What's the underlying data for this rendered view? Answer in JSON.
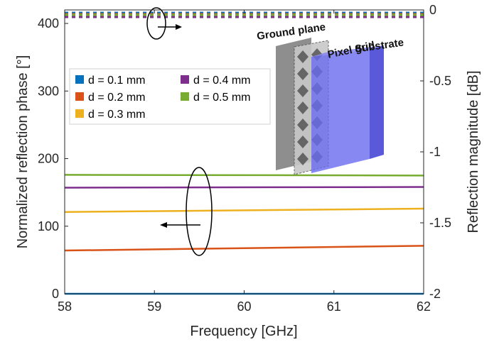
{
  "chart_data": {
    "type": "line",
    "xlabel": "Frequency [GHz]",
    "ylabel_left": "Normalized reflection phase [°]",
    "ylabel_right": "Reflection magnitude [dB]",
    "xlim": [
      58,
      62
    ],
    "ylim_left": [
      0,
      420
    ],
    "ylim_right": [
      -2,
      0
    ],
    "xticks": [
      "58",
      "59",
      "60",
      "61",
      "62"
    ],
    "yticks_left": [
      "0",
      "100",
      "200",
      "300",
      "400"
    ],
    "yticks_right": [
      "-2",
      "-1.5",
      "-1",
      "-0.5",
      "0"
    ],
    "grid": false,
    "legend_position": "upper-left",
    "colors": [
      "#0072BD",
      "#D95319",
      "#EDB120",
      "#7E2F8E",
      "#77AC30"
    ],
    "series": [
      {
        "name": "d = 0.1 mm",
        "axis": "left",
        "style": "solid",
        "x": [
          58,
          62
        ],
        "values": [
          0,
          0
        ]
      },
      {
        "name": "d = 0.2 mm",
        "axis": "left",
        "style": "solid",
        "x": [
          58,
          62
        ],
        "values": [
          64,
          71
        ]
      },
      {
        "name": "d = 0.3 mm",
        "axis": "left",
        "style": "solid",
        "x": [
          58,
          62
        ],
        "values": [
          121,
          126
        ]
      },
      {
        "name": "d = 0.4 mm",
        "axis": "left",
        "style": "solid",
        "x": [
          58,
          62
        ],
        "values": [
          157,
          158
        ]
      },
      {
        "name": "d = 0.5 mm",
        "axis": "left",
        "style": "solid",
        "x": [
          58,
          62
        ],
        "values": [
          176,
          175
        ]
      },
      {
        "name": "d = 0.1 mm",
        "axis": "right",
        "style": "dashed",
        "x": [
          58,
          62
        ],
        "values": [
          -0.02,
          -0.02
        ]
      },
      {
        "name": "d = 0.2 mm",
        "axis": "right",
        "style": "dashed",
        "x": [
          58,
          62
        ],
        "values": [
          -0.03,
          -0.03
        ]
      },
      {
        "name": "d = 0.3 mm",
        "axis": "right",
        "style": "dashed",
        "x": [
          58,
          62
        ],
        "values": [
          -0.04,
          -0.04
        ]
      },
      {
        "name": "d = 0.4 mm",
        "axis": "right",
        "style": "dashed",
        "x": [
          58,
          62
        ],
        "values": [
          -0.05,
          -0.05
        ]
      },
      {
        "name": "d = 0.5 mm",
        "axis": "right",
        "style": "dashed",
        "x": [
          58,
          62
        ],
        "values": [
          -0.035,
          -0.035
        ]
      }
    ],
    "legend": [
      "d = 0.1 mm",
      "d = 0.4 mm",
      "d = 0.2 mm",
      "d = 0.5 mm",
      "d = 0.3 mm"
    ],
    "annotations": {
      "inset_labels": [
        "Ground plane",
        "Pixel grid",
        "Substrate"
      ]
    }
  }
}
